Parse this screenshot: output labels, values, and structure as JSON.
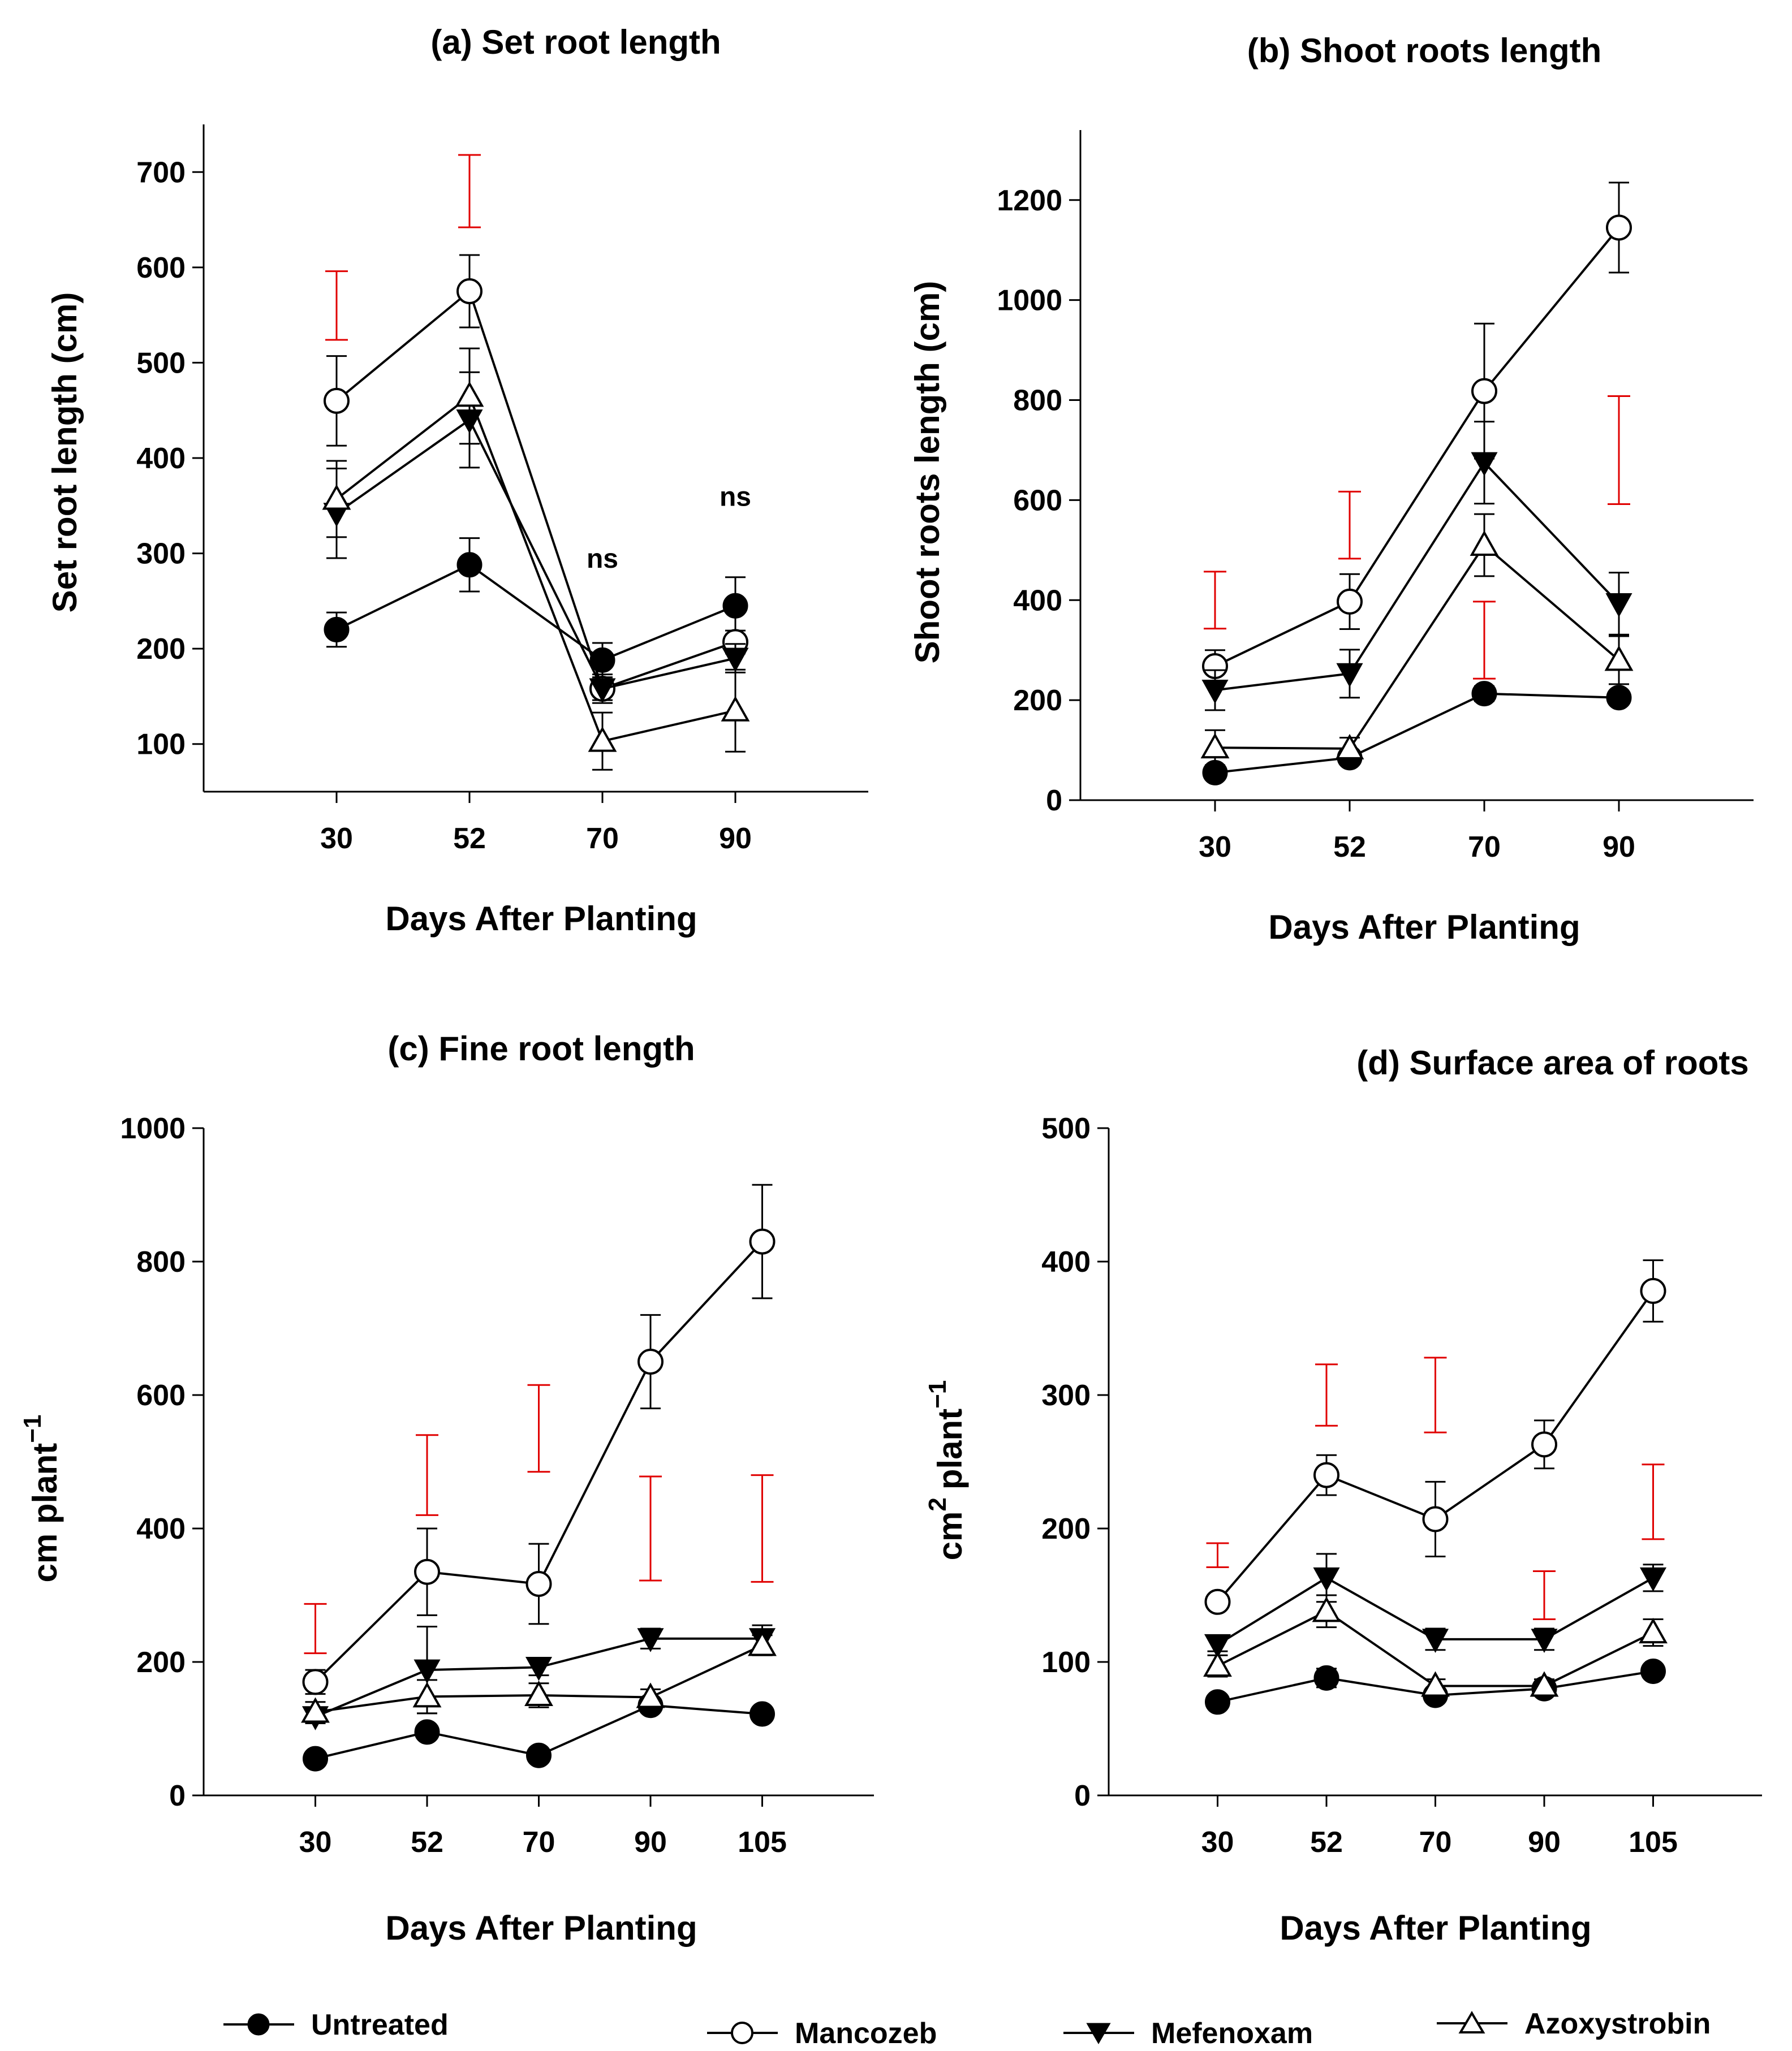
{
  "colors": {
    "ink": "#000000",
    "lsd": "#e00000",
    "background": "#ffffff"
  },
  "legend": [
    {
      "series": "Untreated",
      "marker": "filled-circle"
    },
    {
      "series": "Mancozeb",
      "marker": "open-circle"
    },
    {
      "series": "Mefenoxam",
      "marker": "filled-triangle-down"
    },
    {
      "series": "Azoxystrobin",
      "marker": "open-triangle-up"
    }
  ],
  "chart_data": [
    {
      "id": "a",
      "type": "line",
      "title": "(a) Set root length",
      "xlabel": "Days After Planting",
      "ylabel": "Set root length  (cm)",
      "x": [
        30,
        52,
        70,
        90
      ],
      "xlim": [
        0,
        5
      ],
      "ylim": [
        50,
        750
      ],
      "yticks": [
        100,
        200,
        300,
        400,
        500,
        600,
        700
      ],
      "series": [
        {
          "name": "Untreated",
          "marker": "filled-circle",
          "values": [
            220,
            288,
            188,
            245
          ],
          "errors": [
            18,
            28,
            18,
            30
          ]
        },
        {
          "name": "Mancozeb",
          "marker": "open-circle",
          "values": [
            460,
            575,
            158,
            207
          ],
          "errors": [
            47,
            38,
            15,
            12
          ]
        },
        {
          "name": "Mefenoxam",
          "marker": "filled-triangle-down",
          "values": [
            342,
            440,
            158,
            190
          ],
          "errors": [
            47,
            50,
            12,
            15
          ]
        },
        {
          "name": "Azoxystrobin",
          "marker": "open-triangle-up",
          "values": [
            357,
            465,
            103,
            135
          ],
          "errors": [
            40,
            50,
            30,
            43
          ]
        }
      ],
      "lsd_bars": [
        {
          "x": 30,
          "center": 560,
          "half": 36
        },
        {
          "x": 52,
          "center": 680,
          "half": 38
        }
      ],
      "annotations": [
        {
          "x": 70,
          "y": 285,
          "text": "ns"
        },
        {
          "x": 90,
          "y": 350,
          "text": "ns"
        }
      ]
    },
    {
      "id": "b",
      "type": "line",
      "title": "(b) Shoot roots length",
      "xlabel": "Days After Planting",
      "ylabel": "Shoot roots length  (cm)",
      "x": [
        30,
        52,
        70,
        90
      ],
      "xlim": [
        0,
        5
      ],
      "ylim": [
        0,
        1340
      ],
      "yticks": [
        0,
        200,
        400,
        600,
        800,
        1000,
        1200
      ],
      "series": [
        {
          "name": "Untreated",
          "marker": "filled-circle",
          "values": [
            55,
            85,
            213,
            205
          ],
          "errors": [
            10,
            8,
            15,
            12
          ]
        },
        {
          "name": "Mancozeb",
          "marker": "open-circle",
          "values": [
            268,
            397,
            818,
            1145
          ],
          "errors": [
            32,
            55,
            135,
            90
          ]
        },
        {
          "name": "Mefenoxam",
          "marker": "filled-triangle-down",
          "values": [
            220,
            253,
            675,
            393
          ],
          "errors": [
            40,
            48,
            82,
            62
          ]
        },
        {
          "name": "Azoxystrobin",
          "marker": "open-triangle-up",
          "values": [
            105,
            103,
            510,
            280
          ],
          "errors": [
            35,
            22,
            62,
            48
          ]
        }
      ],
      "lsd_bars": [
        {
          "x": 30,
          "center": 400,
          "half": 57
        },
        {
          "x": 52,
          "center": 550,
          "half": 67
        },
        {
          "x": 70,
          "center": 320,
          "half": 77
        },
        {
          "x": 90,
          "center": 700,
          "half": 108
        }
      ],
      "annotations": []
    },
    {
      "id": "c",
      "type": "line",
      "title": "(c) Fine root length",
      "xlabel": "Days After Planting",
      "ylabel": "cm plant",
      "ylabel_sup": "−1",
      "x": [
        30,
        52,
        70,
        90,
        105
      ],
      "xlim": [
        0,
        6
      ],
      "ylim": [
        0,
        1000
      ],
      "yticks": [
        0,
        200,
        400,
        600,
        800,
        1000
      ],
      "series": [
        {
          "name": "Untreated",
          "marker": "filled-circle",
          "values": [
            55,
            95,
            60,
            135,
            122
          ],
          "errors": [
            5,
            5,
            5,
            8,
            5
          ]
        },
        {
          "name": "Mancozeb",
          "marker": "open-circle",
          "values": [
            170,
            335,
            317,
            650,
            830
          ],
          "errors": [
            18,
            65,
            60,
            70,
            85
          ]
        },
        {
          "name": "Mefenoxam",
          "marker": "filled-triangle-down",
          "values": [
            118,
            188,
            192,
            235,
            235
          ],
          "errors": [
            10,
            65,
            12,
            15,
            20
          ]
        },
        {
          "name": "Azoxystrobin",
          "marker": "open-triangle-up",
          "values": [
            125,
            148,
            150,
            147,
            225
          ],
          "errors": [
            15,
            25,
            18,
            12,
            15
          ]
        }
      ],
      "lsd_bars": [
        {
          "x": 30,
          "center": 250,
          "half": 37
        },
        {
          "x": 52,
          "center": 480,
          "half": 60
        },
        {
          "x": 70,
          "center": 550,
          "half": 65
        },
        {
          "x": 90,
          "center": 400,
          "half": 78
        },
        {
          "x": 105,
          "center": 400,
          "half": 80
        }
      ],
      "annotations": []
    },
    {
      "id": "d",
      "type": "line",
      "title": "(d) Surface area of roots",
      "xlabel": "Days After Planting",
      "ylabel": "cm",
      "ylabel_sup": "2",
      "ylabel_tail": "plant",
      "ylabel_tail_sup": "−1",
      "x": [
        30,
        52,
        70,
        90,
        105
      ],
      "xlim": [
        0,
        6
      ],
      "ylim": [
        0,
        500
      ],
      "yticks": [
        0,
        100,
        200,
        300,
        400,
        500
      ],
      "series": [
        {
          "name": "Untreated",
          "marker": "filled-circle",
          "values": [
            70,
            88,
            75,
            80,
            93
          ],
          "errors": [
            3,
            7,
            5,
            5,
            4
          ]
        },
        {
          "name": "Mancozeb",
          "marker": "open-circle",
          "values": [
            145,
            240,
            207,
            263,
            378
          ],
          "errors": [
            5,
            15,
            28,
            18,
            23
          ]
        },
        {
          "name": "Mefenoxam",
          "marker": "filled-triangle-down",
          "values": [
            113,
            163,
            117,
            117,
            163
          ],
          "errors": [
            5,
            18,
            8,
            8,
            10
          ]
        },
        {
          "name": "Azoxystrobin",
          "marker": "open-triangle-up",
          "values": [
            97,
            138,
            82,
            82,
            122
          ],
          "errors": [
            8,
            12,
            5,
            5,
            10
          ]
        }
      ],
      "lsd_bars": [
        {
          "x": 30,
          "center": 180,
          "half": 9
        },
        {
          "x": 52,
          "center": 300,
          "half": 23
        },
        {
          "x": 70,
          "center": 300,
          "half": 28
        },
        {
          "x": 90,
          "center": 150,
          "half": 18
        },
        {
          "x": 105,
          "center": 220,
          "half": 28
        }
      ],
      "annotations": []
    }
  ]
}
